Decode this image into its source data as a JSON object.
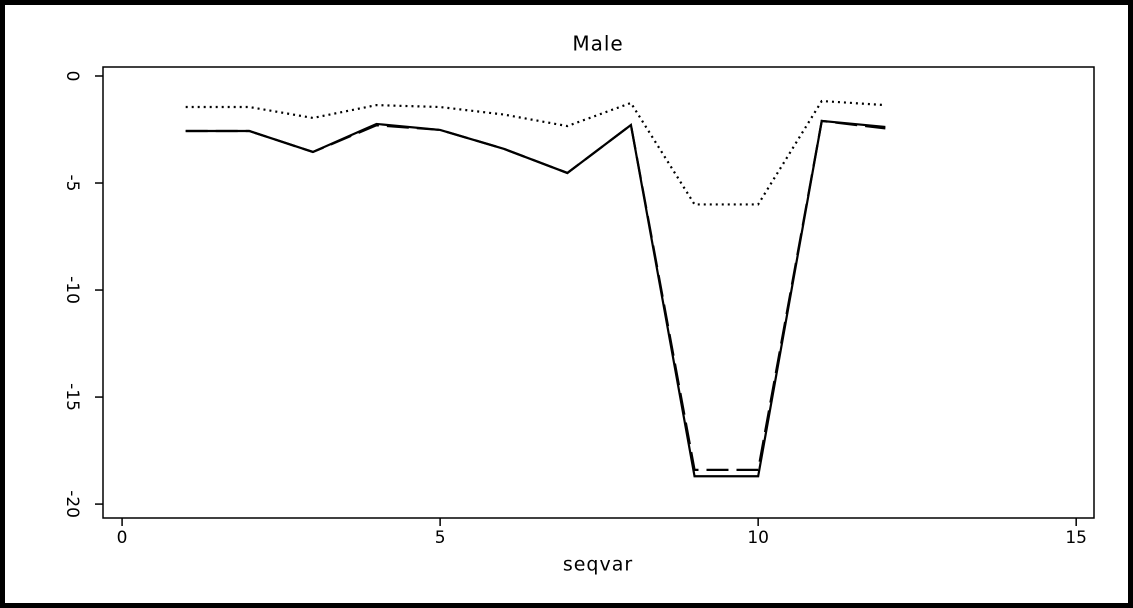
{
  "chart_data": {
    "type": "line",
    "title": "Male",
    "x_label": "seqvar",
    "x": [
      1,
      2,
      3,
      4,
      5,
      6,
      7,
      8,
      9,
      10,
      11,
      12
    ],
    "series": [
      {
        "color": "#000000",
        "dash": "solid",
        "values": [
          -2.57,
          -2.57,
          -3.55,
          -2.24,
          -2.52,
          -3.4,
          -4.53,
          -2.29,
          -18.7,
          -18.7,
          -2.1,
          -2.38
        ]
      },
      {
        "color": "#000000",
        "dash": "dashed",
        "values": [
          -2.57,
          -2.57,
          -3.55,
          -2.3,
          -2.52,
          -3.4,
          -4.53,
          -2.29,
          -18.4,
          -18.4,
          -2.1,
          -2.45
        ]
      },
      {
        "color": "#000000",
        "dash": "dotted",
        "values": [
          -1.45,
          -1.45,
          -1.96,
          -1.36,
          -1.45,
          -1.8,
          -2.34,
          -1.26,
          -6.0,
          -6.0,
          -1.17,
          -1.36
        ]
      }
    ],
    "xlim": [
      -0.3,
      15.28
    ],
    "ylim": [
      -20.65,
      0.42
    ],
    "xticks": [
      0,
      5,
      10,
      15
    ],
    "yticks": [
      0,
      -5,
      -10,
      -15,
      -20
    ]
  }
}
